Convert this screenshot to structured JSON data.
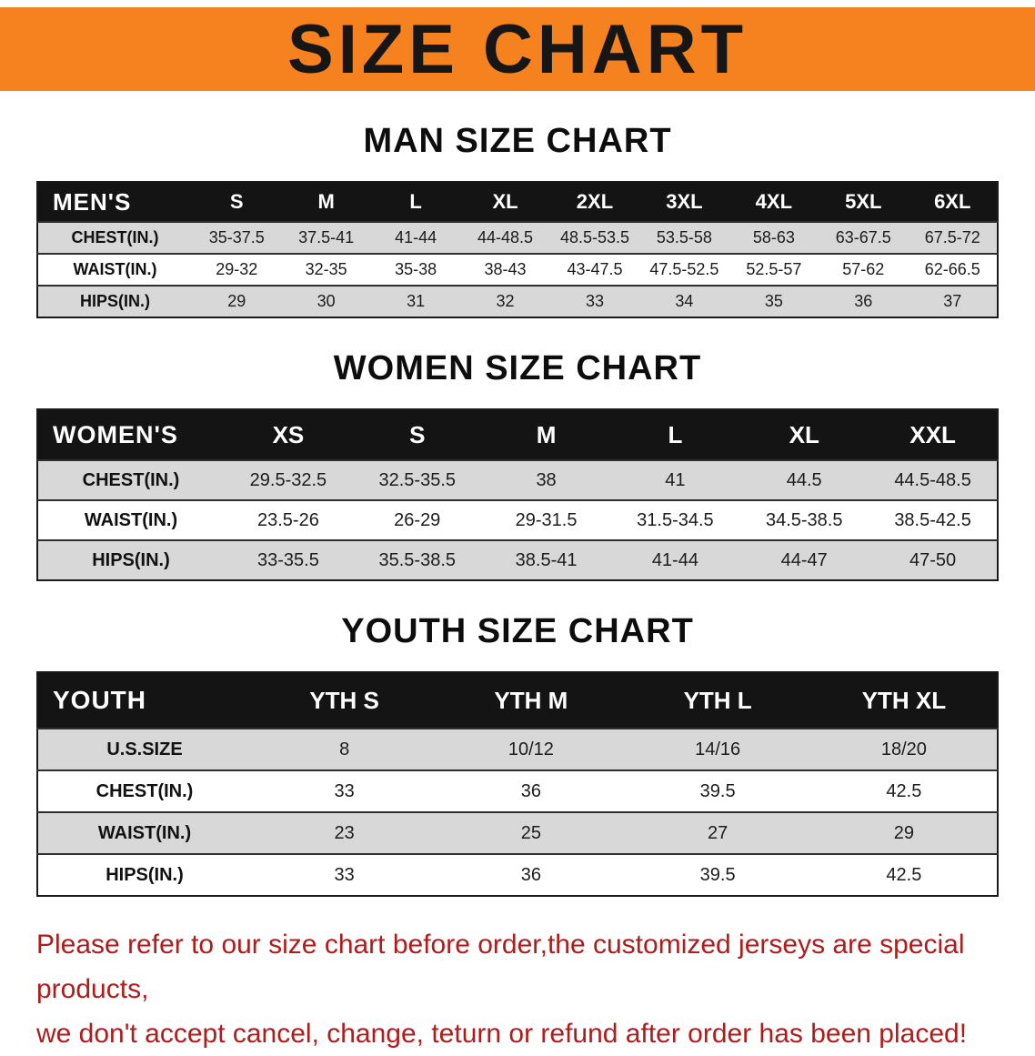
{
  "banner": {
    "title": "SIZE CHART"
  },
  "sections": [
    {
      "title": "MAN SIZE CHART"
    },
    {
      "title": "WOMEN SIZE CHART"
    },
    {
      "title": "YOUTH SIZE CHART"
    }
  ],
  "tables": [
    {
      "name": "mens",
      "header": [
        "MEN'S",
        "S",
        "M",
        "L",
        "XL",
        "2XL",
        "3XL",
        "4XL",
        "5XL",
        "6XL"
      ],
      "rows": [
        [
          "CHEST(IN.)",
          "35-37.5",
          "37.5-41",
          "41-44",
          "44-48.5",
          "48.5-53.5",
          "53.5-58",
          "58-63",
          "63-67.5",
          "67.5-72"
        ],
        [
          "WAIST(IN.)",
          "29-32",
          "32-35",
          "35-38",
          "38-43",
          "43-47.5",
          "47.5-52.5",
          "52.5-57",
          "57-62",
          "62-66.5"
        ],
        [
          "HIPS(IN.)",
          "29",
          "30",
          "31",
          "32",
          "33",
          "34",
          "35",
          "36",
          "37"
        ]
      ]
    },
    {
      "name": "womens",
      "header": [
        "WOMEN'S",
        "XS",
        "S",
        "M",
        "L",
        "XL",
        "XXL"
      ],
      "rows": [
        [
          "CHEST(IN.)",
          "29.5-32.5",
          "32.5-35.5",
          "38",
          "41",
          "44.5",
          "44.5-48.5"
        ],
        [
          "WAIST(IN.)",
          "23.5-26",
          "26-29",
          "29-31.5",
          "31.5-34.5",
          "34.5-38.5",
          "38.5-42.5"
        ],
        [
          "HIPS(IN.)",
          "33-35.5",
          "35.5-38.5",
          "38.5-41",
          "41-44",
          "44-47",
          "47-50"
        ]
      ]
    },
    {
      "name": "youth",
      "header": [
        "YOUTH",
        "YTH S",
        "YTH M",
        "YTH L",
        "YTH XL"
      ],
      "rows": [
        [
          "U.S.SIZE",
          "8",
          "10/12",
          "14/16",
          "18/20"
        ],
        [
          "CHEST(IN.)",
          "33",
          "36",
          "39.5",
          "42.5"
        ],
        [
          "WAIST(IN.)",
          "23",
          "25",
          "27",
          "29"
        ],
        [
          "HIPS(IN.)",
          "33",
          "36",
          "39.5",
          "42.5"
        ]
      ]
    }
  ],
  "footer": {
    "lines": [
      "Please refer to our size chart before order,the customized jerseys are special products,",
      "we don't accept cancel, change, teturn or refund after order has been placed!"
    ]
  },
  "colors": {
    "banner_orange": "#f5821f",
    "header_black": "#141414",
    "row_gray": "#d8d8d8",
    "border_black": "#1a1a1a",
    "footer_red": "#b01b1b",
    "text_black": "#111111"
  }
}
